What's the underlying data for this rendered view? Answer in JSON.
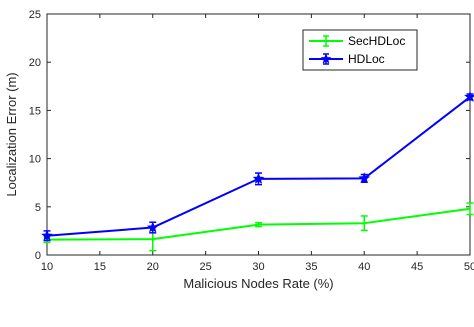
{
  "chart_data": {
    "type": "line",
    "title": "",
    "xlabel": "Malicious Nodes Rate (%)",
    "ylabel": "Localization Error (m)",
    "xlim": [
      10,
      50
    ],
    "ylim": [
      0,
      25
    ],
    "xticks": [
      10,
      15,
      20,
      25,
      30,
      35,
      40,
      45,
      50
    ],
    "yticks": [
      0,
      5,
      10,
      15,
      20,
      25
    ],
    "grid": false,
    "legend_position": "top-right",
    "x": [
      10,
      20,
      30,
      40,
      50
    ],
    "series": [
      {
        "name": "SecHDLoc",
        "color": "#00ff00",
        "marker": "none",
        "values": [
          1.6,
          1.65,
          3.15,
          3.3,
          4.8
        ],
        "errors": [
          0.3,
          1.2,
          0.2,
          0.75,
          0.6
        ]
      },
      {
        "name": "HDLoc",
        "color": "#0000ff",
        "marker": "star",
        "values": [
          2.0,
          2.85,
          7.9,
          7.95,
          16.4
        ],
        "errors": [
          0.5,
          0.55,
          0.6,
          0.4,
          0.3
        ]
      }
    ]
  }
}
